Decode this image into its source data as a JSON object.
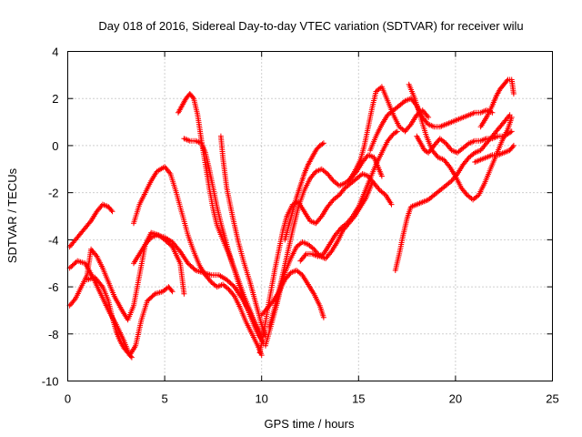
{
  "chart_data": {
    "type": "scatter",
    "title": "Day 018 of 2016, Sidereal Day-to-day VTEC variation (SDTVAR) for receiver wilu",
    "xlabel": "GPS time / hours",
    "ylabel": "SDTVAR / TECUs",
    "xlim": [
      0,
      25
    ],
    "ylim": [
      -10,
      4
    ],
    "xticks": [
      0,
      5,
      10,
      15,
      20,
      25
    ],
    "yticks": [
      -10,
      -8,
      -6,
      -4,
      -2,
      0,
      2,
      4
    ],
    "grid": true,
    "marker": "plus",
    "color": "#ff0000",
    "series": [
      {
        "x": [
          0.1,
          0.4,
          0.8,
          1.2,
          1.5,
          1.8,
          2.1,
          2.3
        ],
        "y": [
          -4.3,
          -4.0,
          -3.6,
          -3.2,
          -2.8,
          -2.5,
          -2.6,
          -2.8
        ]
      },
      {
        "x": [
          0.1,
          0.5,
          0.9,
          1.3,
          1.7,
          2.1,
          2.5,
          2.9,
          3.2,
          3.5,
          3.8,
          4.1,
          4.5,
          4.9,
          5.2,
          5.4
        ],
        "y": [
          -5.2,
          -4.9,
          -5.0,
          -5.6,
          -6.3,
          -7.0,
          -7.6,
          -8.3,
          -8.9,
          -8.5,
          -7.4,
          -6.6,
          -6.3,
          -6.2,
          -6.0,
          -6.2
        ]
      },
      {
        "x": [
          0.1,
          0.4,
          0.7,
          1.0,
          1.2,
          1.5,
          1.8,
          2.1,
          2.4,
          2.8,
          3.1,
          3.4,
          3.7,
          4.0,
          4.3,
          4.7,
          5.0,
          5.4,
          5.8,
          6.0
        ],
        "y": [
          -6.8,
          -6.5,
          -6.0,
          -5.5,
          -4.4,
          -4.7,
          -5.2,
          -5.8,
          -6.4,
          -7.0,
          -7.4,
          -6.8,
          -5.5,
          -4.2,
          -3.7,
          -3.8,
          -4.0,
          -4.3,
          -5.0,
          -6.3
        ]
      },
      {
        "x": [
          1.0,
          1.4,
          1.8,
          2.1,
          2.3,
          2.5,
          2.7,
          2.9,
          3.1,
          3.3
        ],
        "y": [
          -5.7,
          -5.6,
          -6.0,
          -6.6,
          -7.3,
          -7.9,
          -8.3,
          -8.6,
          -8.8,
          -9.0
        ]
      },
      {
        "x": [
          3.4,
          3.7,
          4.0,
          4.3,
          4.6,
          5.0,
          5.3,
          5.6,
          5.9,
          6.2,
          6.5,
          6.8,
          7.1,
          7.4,
          7.7,
          8.0,
          8.3,
          8.6,
          8.9,
          9.2,
          9.5,
          9.8,
          10.0
        ],
        "y": [
          -3.3,
          -2.5,
          -2.0,
          -1.5,
          -1.1,
          -0.9,
          -1.2,
          -2.0,
          -2.9,
          -3.8,
          -4.5,
          -5.1,
          -5.5,
          -5.8,
          -6.0,
          -5.9,
          -6.1,
          -6.4,
          -6.9,
          -7.5,
          -8.0,
          -8.5,
          -8.9
        ]
      },
      {
        "x": [
          3.4,
          3.7,
          4.0,
          4.3,
          4.6,
          5.0,
          5.4,
          5.8,
          6.2,
          6.6,
          7.0,
          7.4,
          7.8,
          8.2,
          8.6,
          9.0,
          9.4,
          9.8
        ],
        "y": [
          -5.0,
          -4.6,
          -4.2,
          -3.9,
          -3.8,
          -3.9,
          -4.1,
          -4.5,
          -5.0,
          -5.3,
          -5.4,
          -5.5,
          -5.5,
          -5.7,
          -6.0,
          -6.5,
          -7.1,
          -7.8
        ]
      },
      {
        "x": [
          5.7,
          5.9,
          6.1,
          6.3,
          6.5,
          6.7,
          6.9,
          7.1,
          7.3,
          7.5,
          7.7,
          8.0,
          8.3,
          8.6,
          8.9,
          9.2,
          9.5,
          9.8,
          10.1
        ],
        "y": [
          1.4,
          1.7,
          2.0,
          2.2,
          2.0,
          1.3,
          0.2,
          -0.8,
          -1.8,
          -2.7,
          -3.4,
          -4.0,
          -4.6,
          -5.3,
          -6.1,
          -6.8,
          -7.4,
          -8.0,
          -8.4
        ]
      },
      {
        "x": [
          6.0,
          6.3,
          6.6,
          6.9,
          7.1,
          7.3,
          7.5,
          7.7,
          7.9,
          8.1,
          8.3,
          8.5,
          8.8,
          9.1,
          9.4,
          9.7,
          10.0
        ],
        "y": [
          0.3,
          0.2,
          0.2,
          0.1,
          -0.3,
          -1.0,
          -1.8,
          -2.6,
          -3.3,
          -3.9,
          -4.5,
          -5.0,
          -5.7,
          -6.4,
          -7.0,
          -7.6,
          -8.1
        ]
      },
      {
        "x": [
          7.9,
          8.0,
          8.2,
          8.5,
          8.8,
          9.1,
          9.4,
          9.6,
          9.8,
          10.0,
          10.2
        ],
        "y": [
          0.4,
          -0.5,
          -1.8,
          -3.0,
          -4.1,
          -5.0,
          -5.8,
          -6.4,
          -7.0,
          -7.6,
          -8.1
        ]
      },
      {
        "x": [
          9.9,
          10.1,
          10.3,
          10.5,
          10.7,
          10.9,
          11.1,
          11.3,
          11.6,
          11.9,
          12.2,
          12.5,
          12.8,
          13.1,
          13.4,
          13.7,
          14.0,
          14.3,
          14.6,
          14.9,
          15.2,
          15.5,
          15.8,
          16.1,
          16.4,
          16.7
        ],
        "y": [
          -8.8,
          -8.0,
          -7.0,
          -6.1,
          -5.2,
          -4.4,
          -3.6,
          -3.0,
          -2.5,
          -2.4,
          -2.8,
          -3.2,
          -3.3,
          -3.0,
          -2.6,
          -2.3,
          -2.1,
          -1.8,
          -1.6,
          -1.4,
          -1.2,
          -1.3,
          -1.6,
          -1.9,
          -2.1,
          -2.5
        ]
      },
      {
        "x": [
          10.2,
          10.5,
          10.8,
          11.0,
          11.2,
          11.5,
          11.8,
          12.1,
          12.4,
          12.7,
          13.0,
          13.3,
          13.6,
          13.9,
          14.2,
          14.5,
          14.8,
          15.1,
          15.4,
          15.7
        ],
        "y": [
          -8.5,
          -7.6,
          -6.7,
          -6.0,
          -5.4,
          -4.8,
          -4.3,
          -4.1,
          -4.2,
          -4.4,
          -4.7,
          -4.8,
          -4.5,
          -4.1,
          -3.6,
          -3.3,
          -3.0,
          -2.6,
          -2.2,
          -1.6
        ]
      },
      {
        "x": [
          10.0,
          10.3,
          10.6,
          10.9,
          11.2,
          11.5,
          11.8,
          12.1,
          12.4,
          12.7,
          13.0,
          13.2
        ],
        "y": [
          -7.2,
          -6.9,
          -6.6,
          -6.2,
          -5.7,
          -5.4,
          -5.3,
          -5.5,
          -5.9,
          -6.3,
          -6.8,
          -7.3
        ]
      },
      {
        "x": [
          10.4,
          10.7,
          11.0,
          11.3,
          11.6,
          11.9,
          12.2,
          12.5,
          12.8,
          13.1,
          13.4,
          13.7,
          14.0,
          14.3,
          14.6,
          14.9,
          15.2,
          15.5,
          15.8,
          16.0,
          16.2
        ],
        "y": [
          -7.7,
          -6.8,
          -5.8,
          -4.7,
          -3.6,
          -2.6,
          -1.9,
          -1.4,
          -1.1,
          -1.0,
          -1.2,
          -1.5,
          -1.7,
          -1.6,
          -1.4,
          -1.1,
          -0.7,
          -0.4,
          -0.5,
          -0.9,
          -1.3
        ]
      },
      {
        "x": [
          11.2,
          11.4,
          11.6,
          11.8,
          12.0,
          12.2,
          12.4,
          12.6,
          12.8,
          13.0,
          13.2
        ],
        "y": [
          -4.0,
          -3.4,
          -2.8,
          -2.2,
          -1.7,
          -1.2,
          -0.8,
          -0.5,
          -0.2,
          0.0,
          0.1
        ]
      },
      {
        "x": [
          12.0,
          12.3,
          12.6,
          12.9,
          13.2,
          13.5,
          13.8,
          14.1,
          14.4,
          14.7,
          15.0,
          15.3,
          15.6,
          15.9,
          16.2,
          16.5,
          16.8,
          17.0
        ],
        "y": [
          -4.9,
          -4.6,
          -4.6,
          -4.7,
          -4.6,
          -4.2,
          -3.8,
          -3.5,
          -3.3,
          -3.0,
          -2.6,
          -2.0,
          -1.4,
          -0.8,
          -0.3,
          0.2,
          0.5,
          0.6
        ]
      },
      {
        "x": [
          14.5,
          14.8,
          15.1,
          15.3,
          15.5,
          15.7,
          15.9,
          16.2,
          16.5,
          16.8,
          17.1,
          17.4,
          17.7,
          18.0,
          18.3,
          18.6
        ],
        "y": [
          -1.5,
          -1.1,
          -0.6,
          0.0,
          0.8,
          1.6,
          2.3,
          2.5,
          1.9,
          1.3,
          0.8,
          0.6,
          0.9,
          1.3,
          1.5,
          1.2
        ]
      },
      {
        "x": [
          15.6,
          15.9,
          16.2,
          16.5,
          16.8,
          17.1,
          17.4,
          17.7,
          18.0,
          18.3,
          18.6,
          18.9,
          19.2,
          19.5,
          19.8,
          20.1,
          20.4,
          20.7,
          21.0,
          21.3,
          21.6,
          21.9
        ],
        "y": [
          -0.2,
          0.4,
          0.9,
          1.3,
          1.5,
          1.7,
          1.9,
          2.0,
          1.7,
          1.2,
          0.9,
          0.8,
          0.8,
          0.9,
          1.0,
          1.1,
          1.2,
          1.3,
          1.4,
          1.4,
          1.5,
          1.4
        ]
      },
      {
        "x": [
          16.9,
          17.1,
          17.3,
          17.5,
          17.7,
          18.0,
          18.3,
          18.6,
          18.9,
          19.2,
          19.5,
          19.8,
          20.1,
          20.4,
          20.7,
          21.0,
          21.3,
          21.6,
          21.9,
          22.2,
          22.5,
          22.8
        ],
        "y": [
          -5.3,
          -4.6,
          -3.8,
          -3.1,
          -2.6,
          -2.5,
          -2.4,
          -2.3,
          -2.1,
          -1.9,
          -1.7,
          -1.5,
          -1.2,
          -0.8,
          -0.5,
          -0.3,
          -0.2,
          0.1,
          0.4,
          0.7,
          1.0,
          1.3
        ]
      },
      {
        "x": [
          17.6,
          17.9,
          18.2,
          18.5,
          18.8,
          19.1,
          19.4,
          19.7,
          20.0,
          20.3,
          20.6,
          20.9,
          21.2,
          21.5,
          21.8,
          22.1,
          22.4,
          22.7,
          22.9
        ],
        "y": [
          2.6,
          2.0,
          1.2,
          0.4,
          -0.2,
          -0.5,
          -0.6,
          -0.9,
          -1.3,
          -1.8,
          -2.1,
          -2.3,
          -2.1,
          -1.6,
          -1.0,
          -0.4,
          0.2,
          0.7,
          1.2
        ]
      },
      {
        "x": [
          18.0,
          18.2,
          18.4,
          18.6,
          18.9,
          19.2,
          19.5,
          19.8,
          20.1,
          20.4,
          20.7,
          21.0,
          21.3,
          21.6,
          21.9,
          22.2,
          22.5,
          22.7,
          22.9
        ],
        "y": [
          0.4,
          0.1,
          -0.2,
          -0.3,
          0.0,
          0.3,
          0.1,
          -0.2,
          -0.3,
          -0.1,
          0.1,
          0.2,
          0.2,
          0.3,
          0.3,
          0.4,
          0.4,
          0.5,
          0.6
        ]
      },
      {
        "x": [
          21.0,
          21.3,
          21.6,
          21.9,
          22.2,
          22.5,
          22.8,
          23.0
        ],
        "y": [
          -0.7,
          -0.6,
          -0.5,
          -0.4,
          -0.4,
          -0.3,
          -0.2,
          0.0
        ]
      },
      {
        "x": [
          21.3,
          21.6,
          21.9,
          22.1,
          22.3,
          22.5,
          22.7,
          22.9,
          23.0
        ],
        "y": [
          0.8,
          1.2,
          1.7,
          2.1,
          2.4,
          2.6,
          2.8,
          2.8,
          2.2
        ]
      }
    ]
  }
}
